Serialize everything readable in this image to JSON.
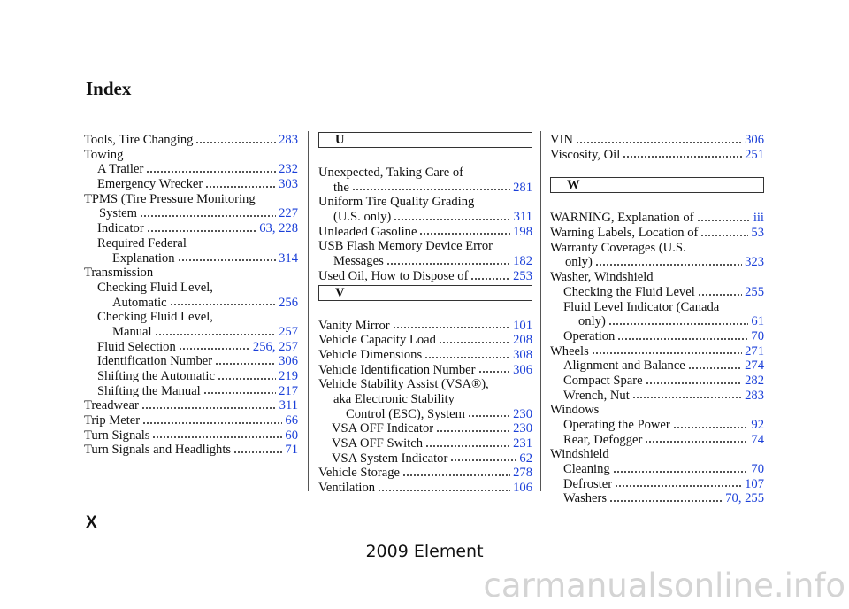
{
  "header": {
    "title": "Index"
  },
  "columns": [
    {
      "blocks": [
        {
          "entries": [
            {
              "lines": [
                "Tools, Tire Changing"
              ],
              "pages": "283"
            },
            {
              "lines": [
                "Towing"
              ],
              "subentries": [
                {
                  "lines": [
                    "A Trailer"
                  ],
                  "pages": "232"
                },
                {
                  "lines": [
                    "Emergency Wrecker"
                  ],
                  "pages": "303"
                }
              ]
            },
            {
              "lines": [
                "TPMS (Tire Pressure Monitoring",
                "System"
              ],
              "pages": "227",
              "subentries": [
                {
                  "lines": [
                    "Indicator"
                  ],
                  "pages": "63, 228"
                },
                {
                  "lines": [
                    "Required Federal",
                    "Explanation"
                  ],
                  "pages": "314"
                }
              ]
            },
            {
              "lines": [
                "Transmission"
              ],
              "subentries": [
                {
                  "lines": [
                    "Checking Fluid Level,",
                    "Automatic"
                  ],
                  "pages": "256"
                },
                {
                  "lines": [
                    "Checking Fluid Level,",
                    "Manual"
                  ],
                  "pages": "257"
                },
                {
                  "lines": [
                    "Fluid Selection"
                  ],
                  "pages": "256, 257"
                },
                {
                  "lines": [
                    "Identification Number"
                  ],
                  "pages": "306"
                },
                {
                  "lines": [
                    "Shifting the Automatic"
                  ],
                  "pages": "219"
                },
                {
                  "lines": [
                    "Shifting the Manual"
                  ],
                  "pages": "217"
                }
              ]
            },
            {
              "lines": [
                "Treadwear"
              ],
              "pages": "311"
            },
            {
              "lines": [
                "Trip Meter"
              ],
              "pages": "66"
            },
            {
              "lines": [
                "Turn Signals"
              ],
              "pages": "60"
            },
            {
              "lines": [
                "Turn Signals and Headlights"
              ],
              "pages": "71"
            }
          ]
        }
      ]
    },
    {
      "blocks": [
        {
          "letter": "U",
          "entries": [
            {
              "lines": [
                "Unexpected, Taking Care of",
                "the"
              ],
              "pages": "281"
            },
            {
              "lines": [
                "Uniform Tire Quality Grading",
                "(U.S. only)"
              ],
              "pages": "311"
            },
            {
              "lines": [
                "Unleaded Gasoline"
              ],
              "pages": "198"
            },
            {
              "lines": [
                "USB Flash Memory Device Error",
                "Messages"
              ],
              "pages": "182"
            },
            {
              "lines": [
                "Used Oil, How to Dispose of"
              ],
              "pages": "253"
            }
          ]
        },
        {
          "letter": "V",
          "entries": [
            {
              "lines": [
                "Vanity Mirror"
              ],
              "pages": "101"
            },
            {
              "lines": [
                "Vehicle Capacity Load"
              ],
              "pages": "208"
            },
            {
              "lines": [
                "Vehicle Dimensions"
              ],
              "pages": "308"
            },
            {
              "lines": [
                "Vehicle Identification Number"
              ],
              "pages": "306"
            },
            {
              "lines": [
                "Vehicle Stability Assist (VSA®),",
                "aka Electronic Stability",
                "Control (ESC), System"
              ],
              "pages": "230",
              "subentries": [
                {
                  "lines": [
                    "VSA OFF Indicator"
                  ],
                  "pages": "230"
                },
                {
                  "lines": [
                    "VSA OFF Switch"
                  ],
                  "pages": "231"
                },
                {
                  "lines": [
                    "VSA System Indicator"
                  ],
                  "pages": "62"
                }
              ]
            },
            {
              "lines": [
                "Vehicle Storage"
              ],
              "pages": "278"
            },
            {
              "lines": [
                "Ventilation"
              ],
              "pages": "106"
            }
          ]
        }
      ]
    },
    {
      "blocks": [
        {
          "entries": [
            {
              "lines": [
                "VIN"
              ],
              "pages": "306"
            },
            {
              "lines": [
                "Viscosity, Oil"
              ],
              "pages": "251"
            }
          ]
        },
        {
          "letter": "W",
          "entries": [
            {
              "lines": [
                "WARNING, Explanation of"
              ],
              "pages": "iii"
            },
            {
              "lines": [
                "Warning Labels, Location of"
              ],
              "pages": "53"
            },
            {
              "lines": [
                "Warranty Coverages (U.S.",
                "only)"
              ],
              "pages": "323"
            },
            {
              "lines": [
                "Washer, Windshield"
              ],
              "subentries": [
                {
                  "lines": [
                    "Checking the Fluid Level"
                  ],
                  "pages": "255"
                },
                {
                  "lines": [
                    "Fluid Level Indicator (Canada",
                    "only)"
                  ],
                  "pages": "61"
                },
                {
                  "lines": [
                    "Operation"
                  ],
                  "pages": "70"
                }
              ]
            },
            {
              "lines": [
                "Wheels"
              ],
              "pages": "271",
              "subentries": [
                {
                  "lines": [
                    "Alignment and Balance"
                  ],
                  "pages": "274"
                },
                {
                  "lines": [
                    "Compact Spare"
                  ],
                  "pages": "282"
                },
                {
                  "lines": [
                    "Wrench, Nut"
                  ],
                  "pages": "283"
                }
              ]
            },
            {
              "lines": [
                "Windows"
              ],
              "subentries": [
                {
                  "lines": [
                    "Operating the Power"
                  ],
                  "pages": "92"
                },
                {
                  "lines": [
                    "Rear, Defogger"
                  ],
                  "pages": "74"
                }
              ]
            },
            {
              "lines": [
                "Windshield"
              ],
              "subentries": [
                {
                  "lines": [
                    "Cleaning"
                  ],
                  "pages": "70"
                },
                {
                  "lines": [
                    "Defroster"
                  ],
                  "pages": "107"
                },
                {
                  "lines": [
                    "Washers"
                  ],
                  "pages": "70, 255"
                }
              ]
            }
          ]
        }
      ]
    }
  ],
  "footer": {
    "page": "X",
    "model": "2009  Element",
    "site": "carmanualsonline.info"
  }
}
